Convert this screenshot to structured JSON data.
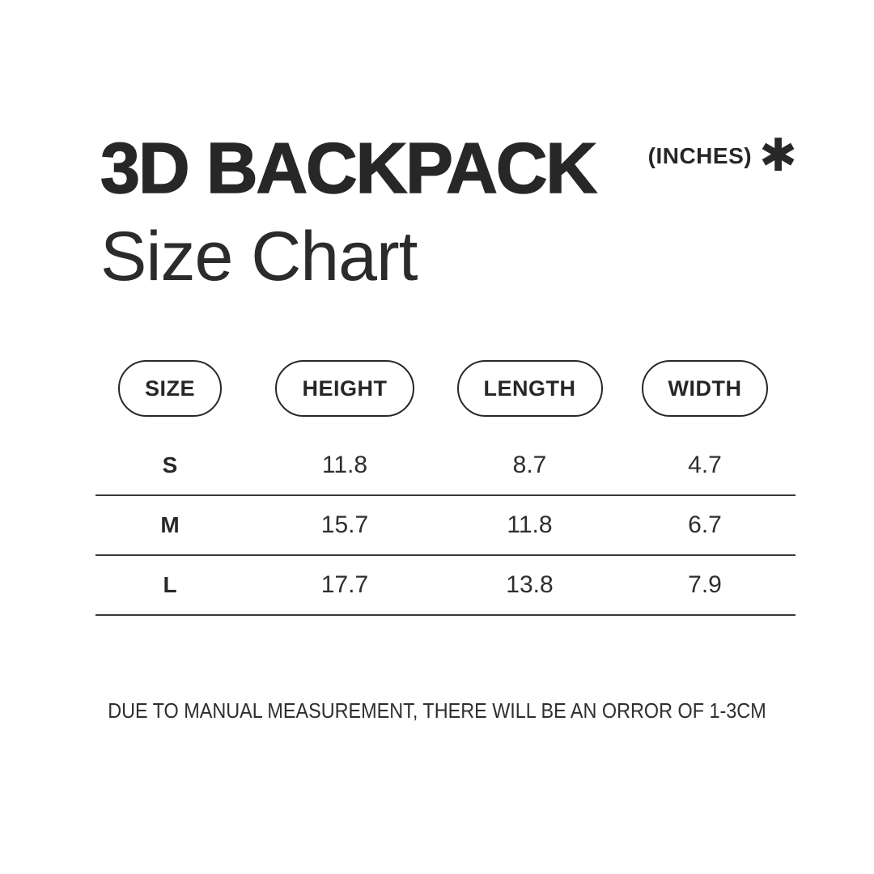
{
  "chart_data": {
    "type": "table",
    "title": "3D BACKPACK Size Chart",
    "unit": "INCHES",
    "columns": [
      "SIZE",
      "HEIGHT",
      "LENGTH",
      "WIDTH"
    ],
    "rows": [
      [
        "S",
        "11.8",
        "8.7",
        "4.7"
      ],
      [
        "M",
        "15.7",
        "11.8",
        "6.7"
      ],
      [
        "L",
        "17.7",
        "13.8",
        "7.9"
      ]
    ]
  },
  "header": {
    "title_line1": "3D BACKPACK",
    "title_line2": "Size Chart",
    "unit_label": "(INCHES)",
    "asterisk": "✱"
  },
  "footer": {
    "note": "DUE TO MANUAL MEASUREMENT, THERE WILL BE AN ORROR OF 1-3CM"
  },
  "colors": {
    "background": "#ffffff",
    "text": "#272727",
    "divider": "#3a3a3a"
  }
}
